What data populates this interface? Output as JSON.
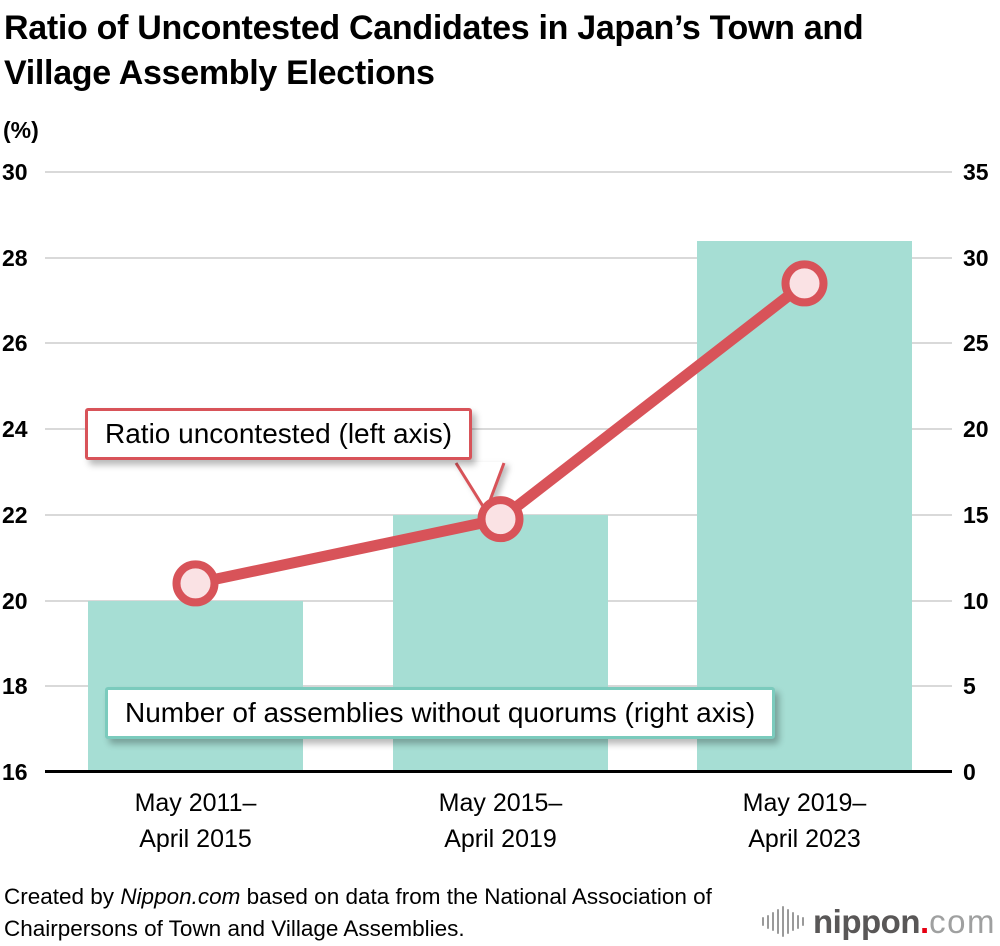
{
  "page": {
    "title": "Ratio of Uncontested Candidates in Japan’s Town and Village Assembly Elections",
    "footer": {
      "prefix": "Created by ",
      "source": "Nippon.com",
      "suffix": " based on data from the National Association of Chairpersons of Town and Village Assemblies."
    },
    "logo": {
      "icon": "soundwave-bars-icon",
      "name_bold": "nippon",
      "dot": ".",
      "name_light": "com"
    }
  },
  "chart_data": {
    "type": "bar",
    "subtype": "dual-axis column chart with overlaid line series",
    "title": "Ratio of Uncontested Candidates in Japan’s Town and Village Assembly Elections",
    "categories": [
      [
        "May 2011–",
        "April 2015"
      ],
      [
        "May 2015–",
        "April 2019"
      ],
      [
        "May 2019–",
        "April 2023"
      ]
    ],
    "series": [
      {
        "name": "Ratio uncontested (left axis)",
        "type": "line",
        "axis": "left",
        "values": [
          20.4,
          21.9,
          27.4
        ],
        "color": "#d85359",
        "marker_fill": "#fae2e4"
      },
      {
        "name": "Number of assemblies without quorums (right axis)",
        "type": "bar",
        "axis": "right",
        "values": [
          10,
          15,
          31
        ],
        "color": "#a6ded4"
      }
    ],
    "left_axis": {
      "unit": "(%)",
      "min": 16,
      "max": 30,
      "step": 2,
      "ticks": [
        "30",
        "28",
        "26",
        "24",
        "22",
        "20",
        "18",
        "16"
      ]
    },
    "right_axis": {
      "min": 0,
      "max": 35,
      "step": 5,
      "ticks": [
        "35",
        "30",
        "25",
        "20",
        "15",
        "10",
        "5",
        "0"
      ]
    },
    "grid": true,
    "legend_position": "callout annotations on chart",
    "annotations": {
      "ratio_label": "Ratio uncontested (left axis)",
      "quorum_label": "Number of assemblies without quorums (right axis)"
    },
    "colors": {
      "bar": "#a6ded4",
      "line": "#d85359",
      "marker_fill": "#fae2e4",
      "grid": "#d9d9d9",
      "axis": "#000000",
      "quorum_border": "#7bcbbd"
    }
  }
}
